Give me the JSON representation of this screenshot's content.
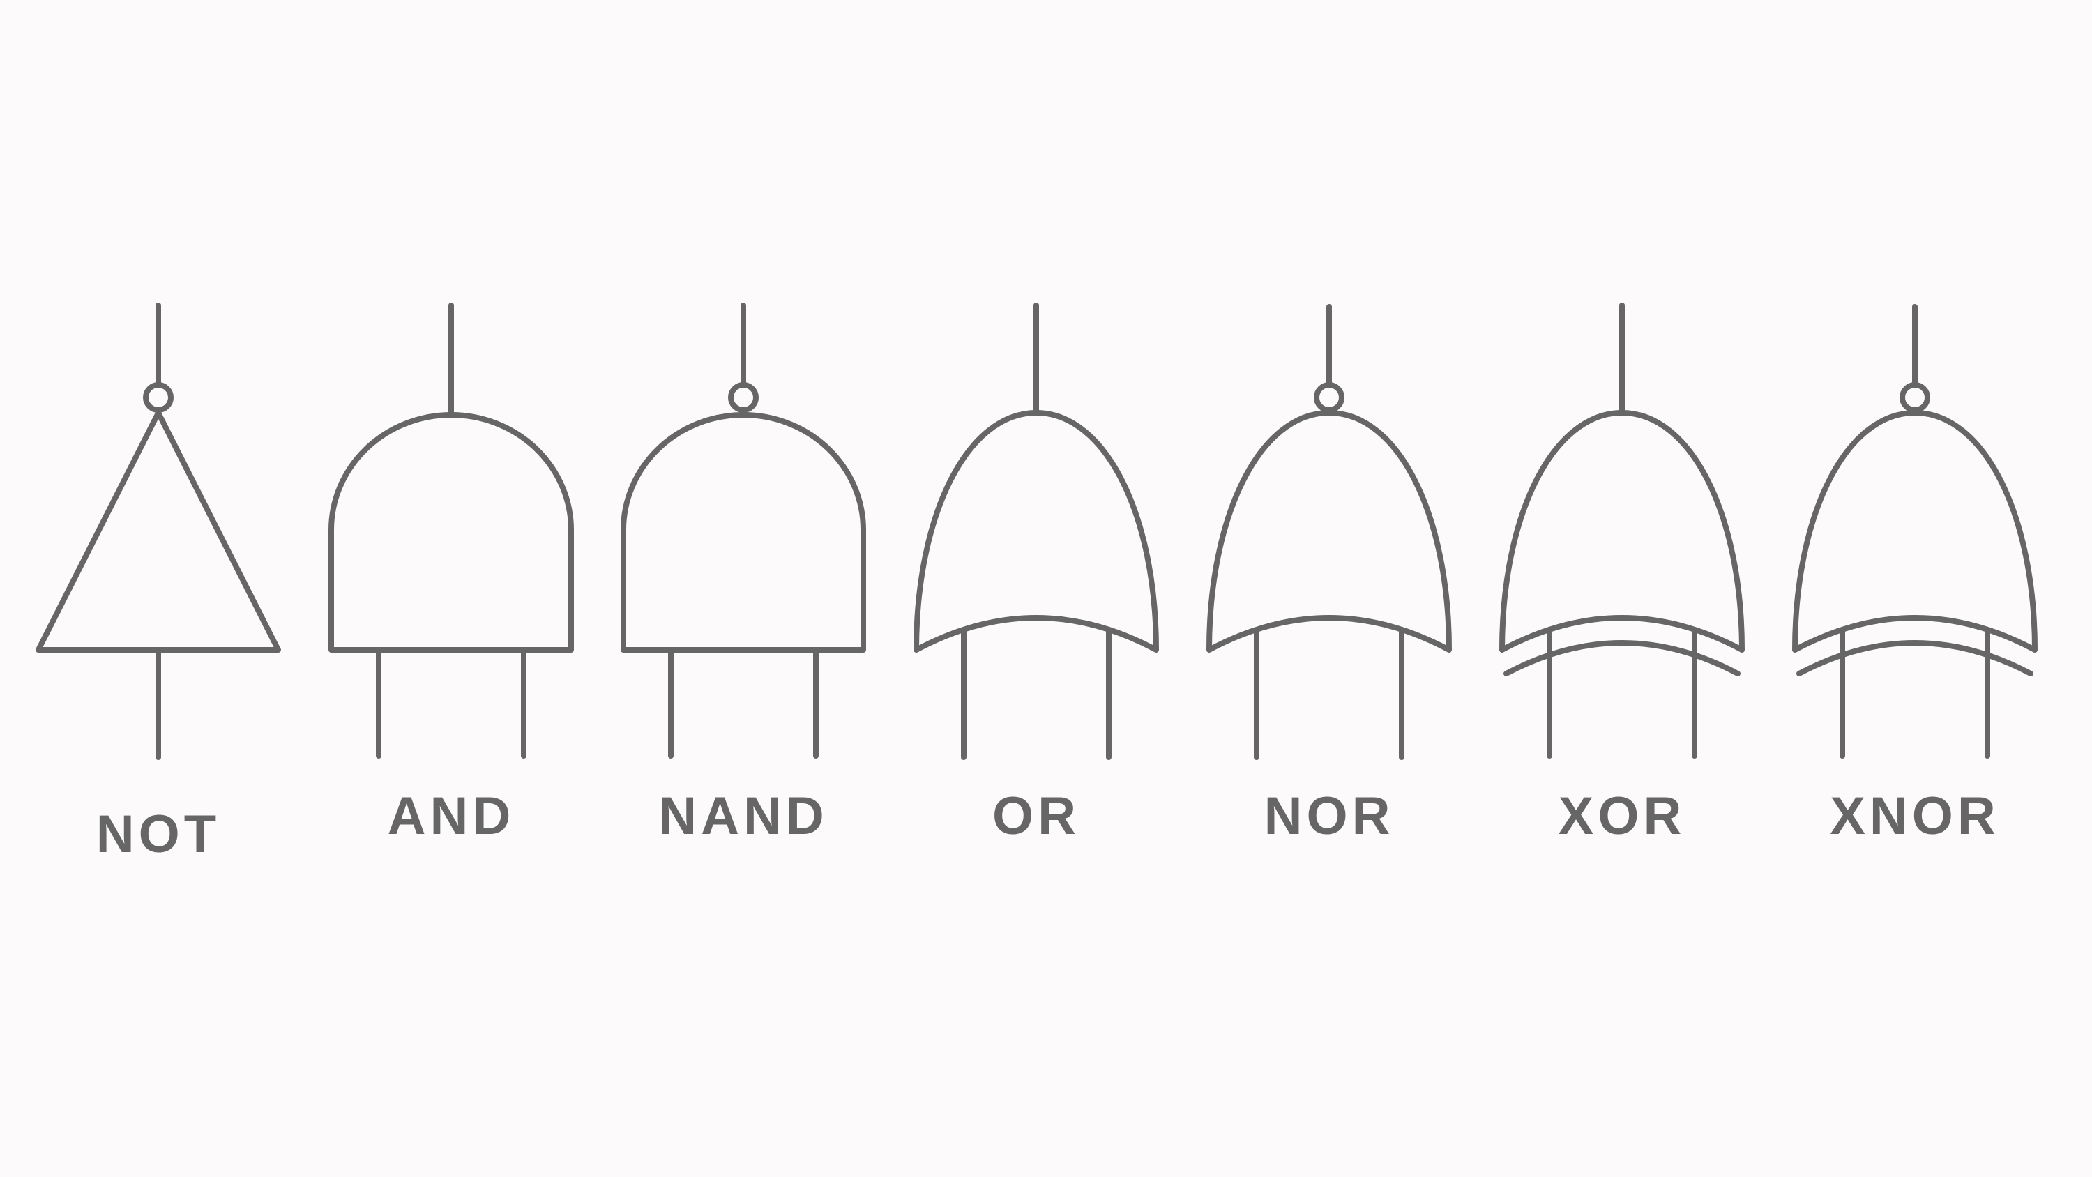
{
  "colors": {
    "background": "#fcfafa",
    "stroke": "#666666",
    "label": "#666666"
  },
  "gates": [
    {
      "id": "not",
      "label": "NOT",
      "shape": "triangle",
      "inverted": true
    },
    {
      "id": "and",
      "label": "AND",
      "shape": "and",
      "inverted": false
    },
    {
      "id": "nand",
      "label": "NAND",
      "shape": "and",
      "inverted": true
    },
    {
      "id": "or",
      "label": "OR",
      "shape": "or",
      "inverted": false
    },
    {
      "id": "nor",
      "label": "NOR",
      "shape": "or",
      "inverted": true
    },
    {
      "id": "xor",
      "label": "XOR",
      "shape": "xor",
      "inverted": false
    },
    {
      "id": "xnor",
      "label": "XNOR",
      "shape": "xor",
      "inverted": true
    }
  ]
}
